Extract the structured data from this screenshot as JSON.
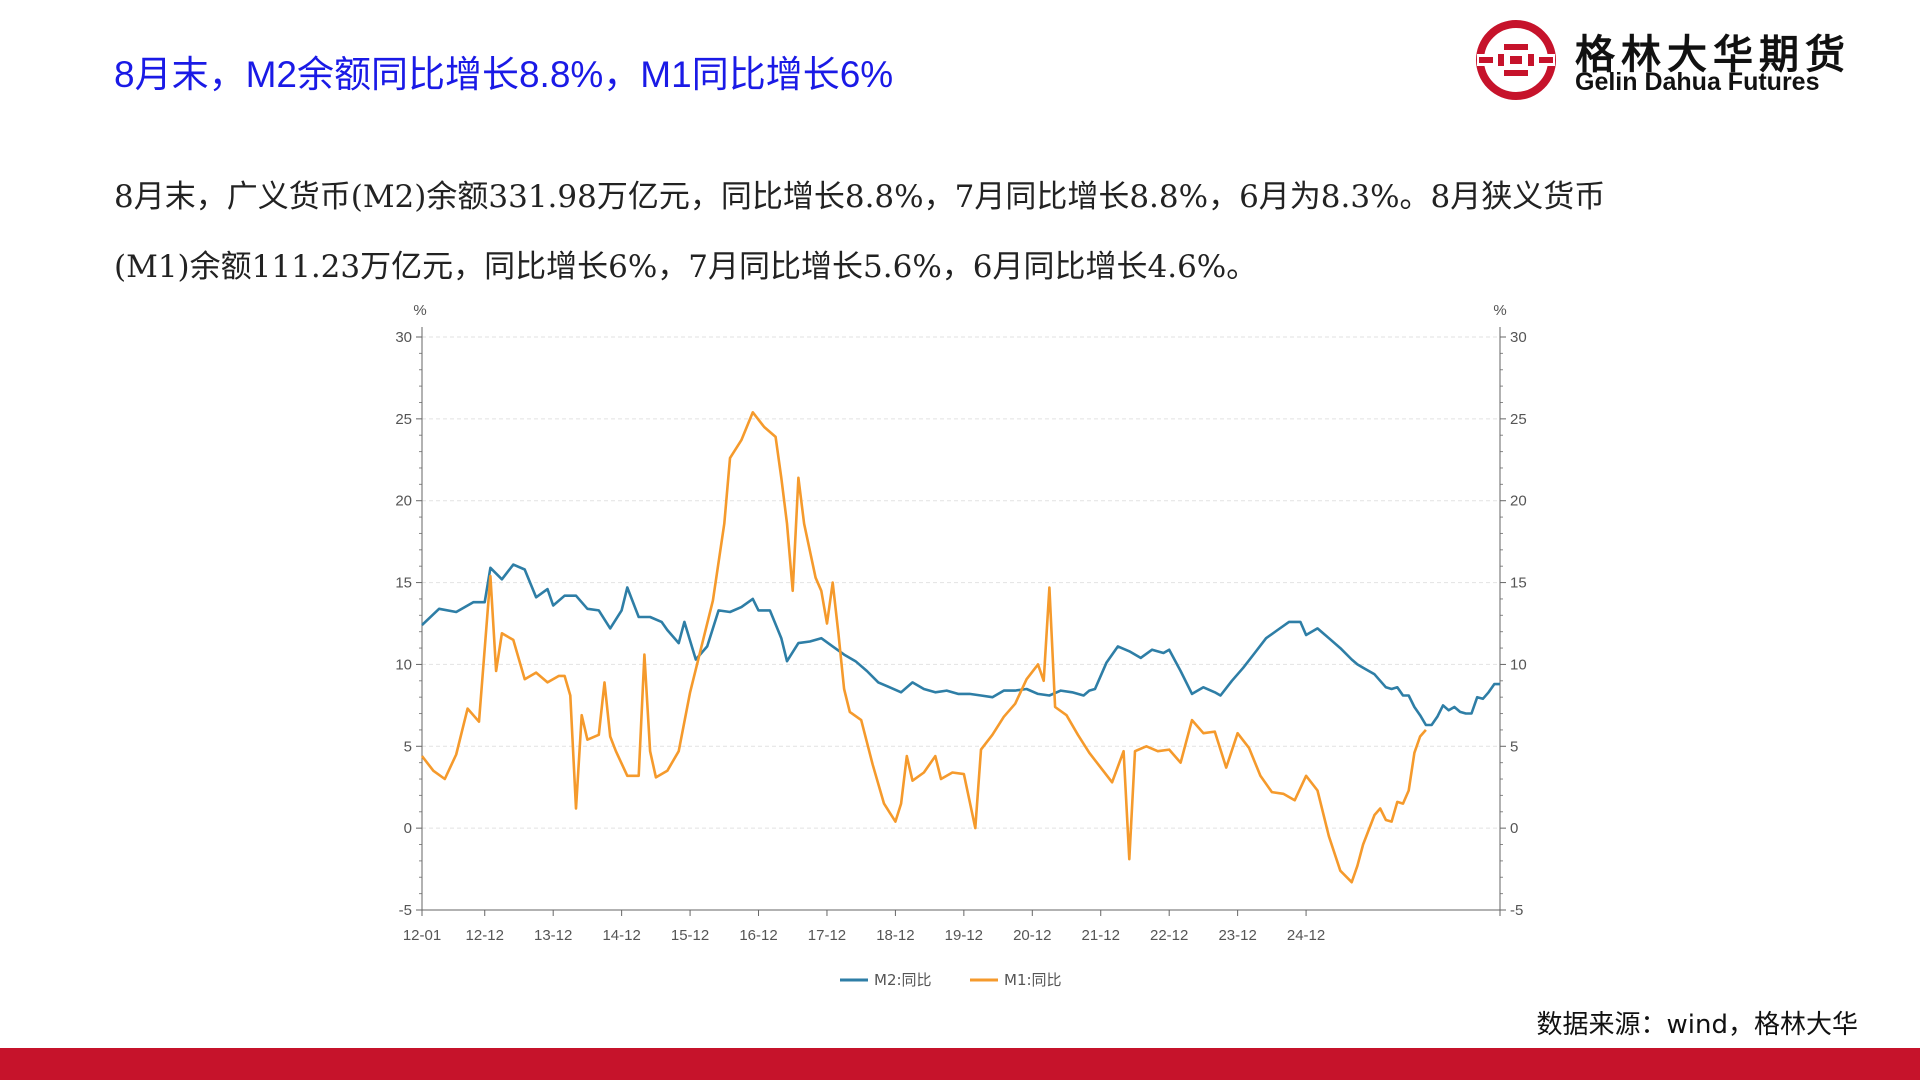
{
  "slide": {
    "title": "8月末，M2余额同比增长8.8%，M1同比增长6%",
    "paragraph_line1": "8月末，广义货币(M2)余额331.98万亿元，同比增长8.8%，7月同比增长8.8%，6月为8.3%。8月狭义货币",
    "paragraph_line2": "(M1)余额111.23万亿元，同比增长6%，7月同比增长5.6%，6月同比增长4.6%。",
    "source": "数据来源：wind，格林大华"
  },
  "logo": {
    "name_cn": "格林大华期货",
    "name_en": "Gelin Dahua Futures",
    "icon": "gelin-dahua-logo-icon",
    "color": "#c6132b"
  },
  "colors": {
    "m2": "#2e7ea6",
    "m1": "#f59a2c",
    "brand_red": "#c6132b",
    "title_blue": "#1a1ae6"
  },
  "chart_data": {
    "type": "line",
    "left_unit": "%",
    "right_unit": "%",
    "ylim": [
      -5,
      30
    ],
    "yticks": [
      -5,
      0,
      5,
      10,
      15,
      20,
      25,
      30
    ],
    "x_tick_labels": [
      "12-01",
      "12-12",
      "13-12",
      "14-12",
      "15-12",
      "16-12",
      "17-12",
      "18-12",
      "19-12",
      "20-12",
      "21-12",
      "22-12",
      "23-12",
      "24-12"
    ],
    "x_tick_month_index": [
      0,
      11,
      23,
      35,
      47,
      59,
      71,
      83,
      95,
      107,
      119,
      131,
      143,
      155
    ],
    "x_month_count": 164,
    "grid": true,
    "legend_position": "bottom-center",
    "series": [
      {
        "name": "M2:同比",
        "color": "#2e7ea6",
        "points": [
          [
            0,
            12.4
          ],
          [
            3,
            13.4
          ],
          [
            6,
            13.2
          ],
          [
            9,
            13.8
          ],
          [
            11,
            13.8
          ],
          [
            12,
            15.9
          ],
          [
            14,
            15.2
          ],
          [
            16,
            16.1
          ],
          [
            18,
            15.8
          ],
          [
            20,
            14.1
          ],
          [
            22,
            14.6
          ],
          [
            23,
            13.6
          ],
          [
            25,
            14.2
          ],
          [
            27,
            14.2
          ],
          [
            29,
            13.4
          ],
          [
            31,
            13.3
          ],
          [
            33,
            12.2
          ],
          [
            35,
            13.3
          ],
          [
            36,
            14.7
          ],
          [
            38,
            12.9
          ],
          [
            40,
            12.9
          ],
          [
            42,
            12.6
          ],
          [
            43,
            12.1
          ],
          [
            45,
            11.3
          ],
          [
            46,
            12.6
          ],
          [
            48,
            10.3
          ],
          [
            50,
            11.1
          ],
          [
            52,
            13.3
          ],
          [
            54,
            13.2
          ],
          [
            56,
            13.5
          ],
          [
            58,
            14.0
          ],
          [
            59,
            13.3
          ],
          [
            61,
            13.3
          ],
          [
            63,
            11.6
          ],
          [
            64,
            10.2
          ],
          [
            66,
            11.3
          ],
          [
            68,
            11.4
          ],
          [
            70,
            11.6
          ],
          [
            72,
            11.1
          ],
          [
            74,
            10.6
          ],
          [
            76,
            10.2
          ],
          [
            78,
            9.6
          ],
          [
            80,
            8.9
          ],
          [
            82,
            8.6
          ],
          [
            84,
            8.3
          ],
          [
            86,
            8.9
          ],
          [
            88,
            8.5
          ],
          [
            90,
            8.3
          ],
          [
            92,
            8.4
          ],
          [
            94,
            8.2
          ],
          [
            96,
            8.2
          ],
          [
            98,
            8.1
          ],
          [
            100,
            8.0
          ],
          [
            102,
            8.4
          ],
          [
            104,
            8.4
          ],
          [
            106,
            8.5
          ],
          [
            108,
            8.2
          ],
          [
            110,
            8.1
          ],
          [
            112,
            8.4
          ],
          [
            114,
            8.3
          ],
          [
            116,
            8.1
          ],
          [
            117,
            8.4
          ],
          [
            118,
            8.5
          ],
          [
            120,
            10.1
          ],
          [
            122,
            11.1
          ],
          [
            124,
            10.8
          ],
          [
            126,
            10.4
          ],
          [
            128,
            10.9
          ],
          [
            130,
            10.7
          ],
          [
            131,
            10.9
          ],
          [
            133,
            9.6
          ],
          [
            135,
            8.2
          ],
          [
            137,
            8.6
          ],
          [
            139,
            8.3
          ],
          [
            140,
            8.1
          ],
          [
            142,
            9.0
          ],
          [
            144,
            9.8
          ],
          [
            146,
            10.7
          ],
          [
            148,
            11.6
          ],
          [
            150,
            12.1
          ],
          [
            152,
            12.6
          ],
          [
            154,
            12.6
          ],
          [
            155,
            11.8
          ],
          [
            157,
            12.2
          ],
          [
            159,
            11.6
          ],
          [
            161,
            11.0
          ],
          [
            163,
            10.3
          ],
          [
            164,
            10.0
          ]
        ]
      },
      {
        "name": "M1:同比",
        "color": "#f59a2c",
        "points": [
          [
            0,
            4.4
          ],
          [
            2,
            3.5
          ],
          [
            4,
            3.0
          ],
          [
            6,
            4.5
          ],
          [
            8,
            7.3
          ],
          [
            10,
            6.5
          ],
          [
            12,
            15.4
          ],
          [
            13,
            9.6
          ],
          [
            14,
            11.9
          ],
          [
            16,
            11.5
          ],
          [
            18,
            9.1
          ],
          [
            20,
            9.5
          ],
          [
            22,
            8.9
          ],
          [
            24,
            9.3
          ],
          [
            25,
            9.3
          ],
          [
            26,
            8.1
          ],
          [
            27,
            1.2
          ],
          [
            28,
            6.9
          ],
          [
            29,
            5.4
          ],
          [
            31,
            5.7
          ],
          [
            32,
            8.9
          ],
          [
            33,
            5.6
          ],
          [
            34,
            4.7
          ],
          [
            36,
            3.2
          ],
          [
            38,
            3.2
          ],
          [
            39,
            10.6
          ],
          [
            40,
            4.7
          ],
          [
            41,
            3.1
          ],
          [
            43,
            3.5
          ],
          [
            45,
            4.7
          ],
          [
            47,
            8.3
          ],
          [
            49,
            11.1
          ],
          [
            51,
            13.9
          ],
          [
            53,
            18.6
          ],
          [
            54,
            22.6
          ],
          [
            56,
            23.7
          ],
          [
            58,
            25.4
          ],
          [
            60,
            24.5
          ],
          [
            62,
            23.9
          ],
          [
            63,
            21.4
          ],
          [
            64,
            18.6
          ],
          [
            65,
            14.5
          ],
          [
            66,
            21.4
          ],
          [
            67,
            18.6
          ],
          [
            69,
            15.3
          ],
          [
            70,
            14.5
          ],
          [
            71,
            12.5
          ],
          [
            72,
            15.0
          ],
          [
            73,
            11.9
          ],
          [
            74,
            8.5
          ],
          [
            75,
            7.1
          ],
          [
            77,
            6.6
          ],
          [
            79,
            3.9
          ],
          [
            81,
            1.5
          ],
          [
            83,
            0.4
          ],
          [
            84,
            1.5
          ],
          [
            85,
            4.4
          ],
          [
            86,
            2.9
          ],
          [
            88,
            3.4
          ],
          [
            90,
            4.4
          ],
          [
            91,
            3.0
          ],
          [
            93,
            3.4
          ],
          [
            95,
            3.3
          ],
          [
            97,
            0.0
          ],
          [
            98,
            4.8
          ],
          [
            100,
            5.7
          ],
          [
            102,
            6.8
          ],
          [
            104,
            7.6
          ],
          [
            106,
            9.1
          ],
          [
            108,
            10.0
          ],
          [
            109,
            9.0
          ],
          [
            110,
            14.7
          ],
          [
            111,
            7.4
          ],
          [
            113,
            6.9
          ],
          [
            115,
            5.7
          ],
          [
            117,
            4.6
          ],
          [
            119,
            3.7
          ],
          [
            121,
            2.8
          ],
          [
            123,
            4.7
          ],
          [
            124,
            -1.9
          ],
          [
            125,
            4.7
          ],
          [
            127,
            5.0
          ],
          [
            129,
            4.7
          ],
          [
            131,
            4.8
          ],
          [
            133,
            4.0
          ],
          [
            135,
            6.6
          ],
          [
            137,
            5.8
          ],
          [
            139,
            5.9
          ],
          [
            141,
            3.7
          ],
          [
            143,
            5.8
          ],
          [
            145,
            4.9
          ],
          [
            147,
            3.2
          ],
          [
            149,
            2.2
          ],
          [
            151,
            2.1
          ],
          [
            153,
            1.7
          ],
          [
            155,
            3.2
          ],
          [
            157,
            2.3
          ],
          [
            159,
            -0.5
          ],
          [
            161,
            -2.6
          ],
          [
            163,
            -3.3
          ],
          [
            164,
            -2.3
          ]
        ]
      }
    ],
    "series_tail": {
      "M2:同比": [
        [
          165,
          9.8
        ],
        [
          167,
          9.4
        ],
        [
          168,
          9.0
        ],
        [
          169,
          8.6
        ],
        [
          170,
          8.5
        ],
        [
          171,
          8.6
        ],
        [
          172,
          8.1
        ],
        [
          173,
          8.1
        ],
        [
          174,
          7.4
        ],
        [
          175,
          6.9
        ],
        [
          176,
          6.3
        ],
        [
          177,
          6.3
        ],
        [
          178,
          6.8
        ],
        [
          179,
          7.5
        ],
        [
          180,
          7.2
        ],
        [
          181,
          7.4
        ],
        [
          182,
          7.1
        ],
        [
          183,
          7.0
        ],
        [
          184,
          7.0
        ],
        [
          185,
          8.0
        ],
        [
          186,
          7.9
        ],
        [
          187,
          8.3
        ],
        [
          188,
          8.8
        ],
        [
          189,
          8.8
        ]
      ],
      "M1:同比": [
        [
          165,
          -1.0
        ],
        [
          167,
          0.8
        ],
        [
          168,
          1.2
        ],
        [
          169,
          0.5
        ],
        [
          170,
          0.4
        ],
        [
          171,
          1.6
        ],
        [
          172,
          1.5
        ],
        [
          173,
          2.3
        ],
        [
          174,
          4.6
        ],
        [
          175,
          5.6
        ],
        [
          176,
          6.0
        ]
      ]
    }
  }
}
